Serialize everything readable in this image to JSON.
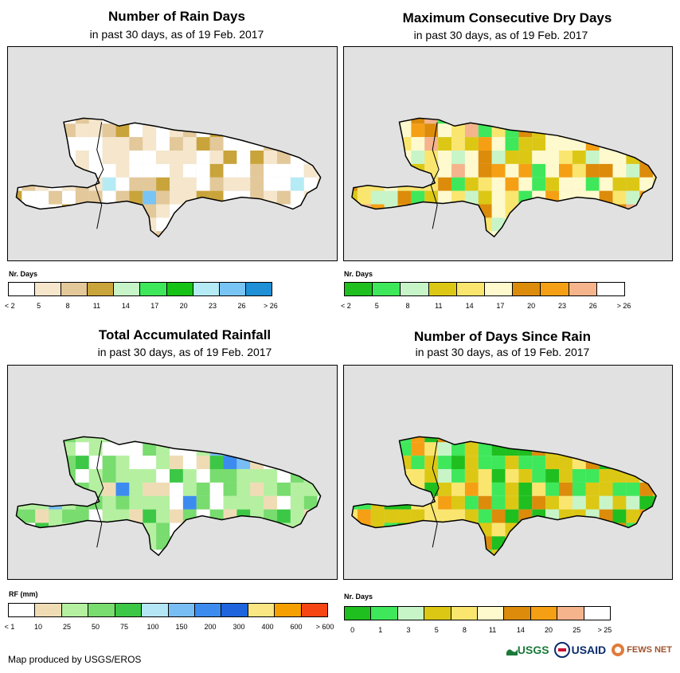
{
  "panels": [
    {
      "title": "Number of Rain Days",
      "subtitle": "in past 30 days, as of 19 Feb. 2017",
      "legend_title": "Nr. Days",
      "legend_colors": [
        "#ffffff",
        "#f5e6cc",
        "#e3c89a",
        "#c9a43a",
        "#c8f5c8",
        "#3ee85a",
        "#17c217",
        "#b5ebf5",
        "#78c4f5",
        "#1f8fd6"
      ],
      "legend_labels": [
        "< 2",
        "5",
        "8",
        "11",
        "14",
        "17",
        "20",
        "23",
        "26",
        "> 26"
      ]
    },
    {
      "title": "Maximum Consecutive Dry Days",
      "subtitle": "in past 30 days, as of 19 Feb. 2017",
      "legend_title": "Nr. Days",
      "legend_colors": [
        "#1fbf1f",
        "#3ee85a",
        "#c8f5c8",
        "#dcc814",
        "#fae66e",
        "#fffacd",
        "#dc8c0a",
        "#f5a014",
        "#f5b48c",
        "#ffffff"
      ],
      "legend_labels": [
        "< 2",
        "5",
        "8",
        "11",
        "14",
        "17",
        "20",
        "23",
        "26",
        "> 26"
      ]
    },
    {
      "title": "Total Accumulated Rainfall",
      "subtitle": "in past 30 days, as of 19 Feb. 2017",
      "legend_title": "RF (mm)",
      "legend_colors": [
        "#ffffff",
        "#f0dcb4",
        "#b4f0a0",
        "#78dc6e",
        "#3cc846",
        "#b4e6f5",
        "#78bef5",
        "#3c8cf0",
        "#1e64dc",
        "#fae682",
        "#f5a000",
        "#f54614"
      ],
      "legend_labels": [
        "< 1",
        "10",
        "25",
        "50",
        "75",
        "100",
        "150",
        "200",
        "300",
        "400",
        "600",
        "> 600"
      ]
    },
    {
      "title": "Number of Days Since Rain",
      "subtitle": "in past 30 days, as of 19 Feb. 2017",
      "legend_title": "Nr. Days",
      "legend_colors": [
        "#1fbf1f",
        "#3ee85a",
        "#c8f5c8",
        "#dcc814",
        "#fae66e",
        "#fffacd",
        "#dc8c0a",
        "#f5a014",
        "#f5b48c",
        "#ffffff"
      ],
      "legend_labels": [
        "0",
        "1",
        "3",
        "5",
        "8",
        "11",
        "14",
        "20",
        "25",
        "> 25"
      ]
    }
  ],
  "credit": "Map produced by USGS/EROS",
  "logos": {
    "usgs": "USGS",
    "usaid": "USAID",
    "fews": "FEWS NET"
  }
}
